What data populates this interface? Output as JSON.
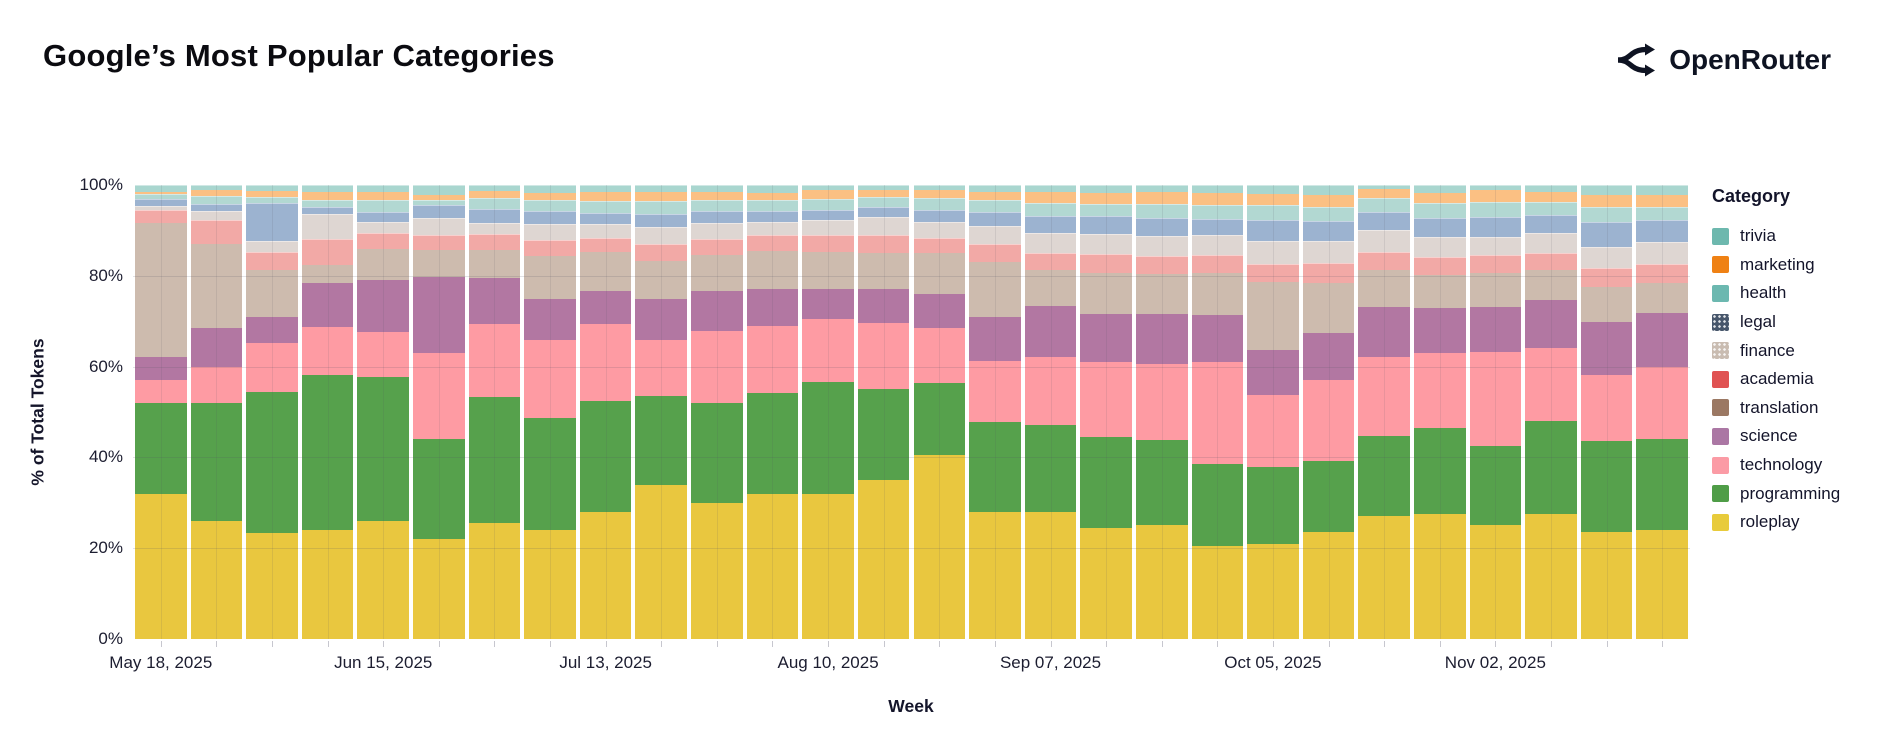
{
  "header": {
    "title": "Google’s Most Popular Categories",
    "brand": "OpenRouter"
  },
  "chart_data": {
    "type": "bar",
    "stacked": true,
    "title": "Google’s Most Popular Categories",
    "xlabel": "Week",
    "ylabel": "% of Total Tokens",
    "ylim": [
      0,
      100
    ],
    "grid": true,
    "ytick_labels": [
      "0%",
      "20%",
      "40%",
      "60%",
      "80%",
      "100%"
    ],
    "n_weeks": 28,
    "x_tick_labels": [
      {
        "bar_index": 0,
        "label": "May 18, 2025"
      },
      {
        "bar_index": 4,
        "label": "Jun 15, 2025"
      },
      {
        "bar_index": 8,
        "label": "Jul 13, 2025"
      },
      {
        "bar_index": 12,
        "label": "Aug 10, 2025"
      },
      {
        "bar_index": 16,
        "label": "Sep 07, 2025"
      },
      {
        "bar_index": 20,
        "label": "Oct 05, 2025"
      },
      {
        "bar_index": 24,
        "label": "Nov 02, 2025"
      }
    ],
    "units": "percent_of_total_tokens",
    "series_bottom_to_top": [
      {
        "name": "roleplay",
        "color": "#e9c73f",
        "values": [
          32,
          26,
          23.4,
          24,
          26,
          22,
          25.5,
          24,
          28,
          34,
          30,
          32,
          32,
          35,
          40.5,
          28,
          28,
          24.5,
          25,
          20.5,
          21,
          23.5,
          27,
          27.5,
          25,
          27.5,
          23.5,
          24
        ]
      },
      {
        "name": "programming",
        "color": "#56a14c",
        "values": [
          20,
          26,
          31,
          34.1,
          31.8,
          22,
          27.8,
          24.6,
          24.5,
          19.5,
          22,
          22.2,
          24.5,
          20,
          15.8,
          19.7,
          19.1,
          20,
          18.8,
          18,
          16.8,
          15.6,
          17.6,
          19,
          17.5,
          20.5,
          20,
          20
        ]
      },
      {
        "name": "technology",
        "color": "#fe9ba3",
        "values": [
          5,
          8,
          10.7,
          10.7,
          9.9,
          19,
          16.1,
          17.3,
          16.8,
          12.4,
          15.9,
          14.7,
          13.9,
          14.5,
          12.1,
          13.5,
          14.9,
          16.5,
          16.8,
          22.5,
          15.9,
          17.9,
          17.6,
          16.4,
          20.8,
          16,
          14.6,
          16
        ]
      },
      {
        "name": "science",
        "color": "#b277a2",
        "values": [
          5,
          8.5,
          5.9,
          9.6,
          11.4,
          16.8,
          10.1,
          9,
          7.4,
          9,
          8.7,
          8.2,
          6.6,
          7.5,
          7.6,
          9.7,
          11.3,
          10.5,
          10.9,
          10.3,
          10,
          10.5,
          11,
          9.9,
          9.9,
          10.7,
          11.8,
          11.7
        ]
      },
      {
        "name": "translation",
        "color": "#cdbbae",
        "values": [
          29.6,
          18.5,
          10.3,
          3.9,
          6.9,
          5.9,
          6.2,
          9.4,
          8.6,
          8.4,
          7.9,
          8.3,
          8.3,
          8,
          9,
          12.1,
          8,
          9.2,
          8.8,
          9.4,
          15,
          11,
          8.1,
          7.4,
          7.3,
          6.6,
          7.7,
          6.6
        ]
      },
      {
        "name": "academia",
        "color": "#f2a9a6",
        "pattern": "dots",
        "values": [
          2.9,
          5.3,
          3.9,
          5.9,
          3.4,
          3.3,
          3.4,
          3.6,
          3,
          3.8,
          3.7,
          3.6,
          3.7,
          4,
          3.3,
          4,
          3.7,
          4,
          4.1,
          3.8,
          4,
          4.3,
          4,
          4,
          4.1,
          3.7,
          4.1,
          4.4
        ]
      },
      {
        "name": "finance",
        "color": "#ded6d2",
        "pattern": "dots",
        "values": [
          0.8,
          2,
          2.4,
          5.3,
          2.5,
          3.7,
          2.5,
          3.4,
          3,
          3.6,
          3.4,
          2.9,
          3.3,
          4,
          3.6,
          4,
          4.4,
          4.4,
          4.4,
          4.4,
          5,
          4.8,
          4.8,
          4.4,
          4,
          4.4,
          4.7,
          4.8
        ]
      },
      {
        "name": "legal",
        "color": "#9cb3d0",
        "pattern": "dots",
        "values": [
          1.7,
          1.5,
          8.4,
          1.6,
          2.2,
          3,
          3,
          3,
          2.6,
          2.9,
          2.6,
          2.4,
          2.2,
          2.1,
          2.6,
          3,
          3.7,
          4,
          4,
          3.6,
          4.6,
          4.4,
          4,
          4.1,
          4.4,
          4,
          5.5,
          4.8
        ]
      },
      {
        "name": "health",
        "color": "#b2d8d2",
        "pattern": "dots",
        "values": [
          1,
          1.7,
          1.4,
          1.6,
          2.6,
          1,
          2.6,
          2.5,
          2.6,
          2.9,
          2.6,
          2.4,
          2.5,
          2.3,
          2.6,
          2.6,
          2.9,
          2.7,
          3,
          3,
          3.2,
          3.2,
          3,
          3.3,
          3.3,
          2.9,
          3.3,
          2.9
        ]
      },
      {
        "name": "marketing",
        "color": "#fbc083",
        "values": [
          0.5,
          1.3,
          1.3,
          1.7,
          1.8,
          1,
          1.5,
          1.5,
          1.9,
          1.9,
          1.7,
          1.6,
          2,
          1.6,
          1.9,
          1.9,
          2.5,
          2.5,
          2.7,
          2.8,
          2.6,
          2.6,
          2,
          2.3,
          2.6,
          2.2,
          2.6,
          2.6
        ]
      },
      {
        "name": "trivia",
        "color": "#a9d6cf",
        "pattern": "dots",
        "values": [
          1.5,
          1.2,
          1.3,
          1.6,
          1.5,
          2.3,
          1.3,
          1.7,
          1.6,
          1.6,
          1.5,
          1.7,
          1,
          1,
          1,
          1.5,
          1.5,
          1.7,
          1.5,
          1.7,
          1.9,
          2.2,
          0.9,
          1.7,
          1.1,
          1.5,
          2.2,
          2.2
        ]
      }
    ],
    "legend": {
      "title": "Category",
      "position": "right",
      "items_top_to_bottom": [
        {
          "label": "trivia",
          "color": "#6db8ae"
        },
        {
          "label": "marketing",
          "color": "#ef8114"
        },
        {
          "label": "health",
          "color": "#6cb8b0"
        },
        {
          "label": "legal",
          "color": "#47566b",
          "pattern": "dots"
        },
        {
          "label": "finance",
          "color": "#c9bcb1",
          "pattern": "dots"
        },
        {
          "label": "academia",
          "color": "#e05252"
        },
        {
          "label": "translation",
          "color": "#9b7863"
        },
        {
          "label": "science",
          "color": "#ab77a4"
        },
        {
          "label": "technology",
          "color": "#fb9ba5"
        },
        {
          "label": "programming",
          "color": "#4f9d47"
        },
        {
          "label": "roleplay",
          "color": "#e8cb3b"
        }
      ]
    }
  }
}
